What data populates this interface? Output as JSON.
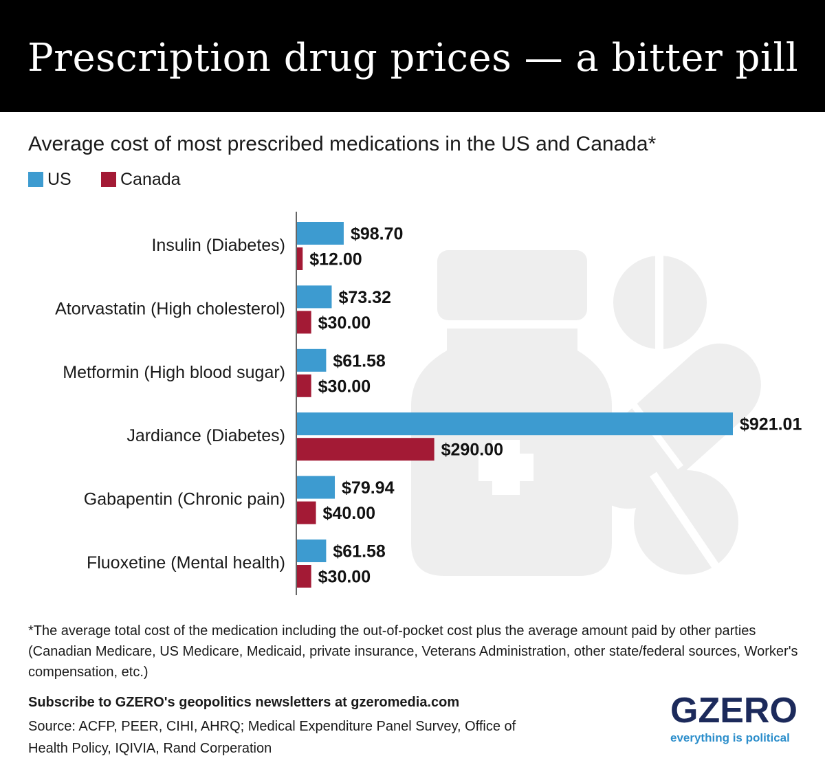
{
  "header": {
    "title": "Prescription drug prices — a bitter pill"
  },
  "chart_data": {
    "type": "bar",
    "orientation": "horizontal",
    "title": "Average cost of most prescribed medications in the US and Canada*",
    "categories": [
      "Insulin (Diabetes)",
      "Atorvastatin (High cholesterol)",
      "Metformin (High blood sugar)",
      "Jardiance (Diabetes)",
      "Gabapentin (Chronic pain)",
      "Fluoxetine (Mental health)"
    ],
    "series": [
      {
        "name": "US",
        "color": "#3d9bd0",
        "values": [
          98.7,
          73.32,
          61.58,
          921.01,
          79.94,
          61.58
        ],
        "labels": [
          "$98.70",
          "$73.32",
          "$61.58",
          "$921.01",
          "$79.94",
          "$61.58"
        ]
      },
      {
        "name": "Canada",
        "color": "#a31a35",
        "values": [
          12.0,
          30.0,
          30.0,
          290.0,
          40.0,
          30.0
        ],
        "labels": [
          "$12.00",
          "$30.00",
          "$30.00",
          "$290.00",
          "$40.00",
          "$30.00"
        ]
      }
    ],
    "xlim": [
      0,
      921.01
    ],
    "xlabel": "",
    "ylabel": "",
    "grid": false,
    "legend_position": "top-left"
  },
  "footnote": "*The average total cost of the medication including the out-of-pocket cost plus the average amount paid by other parties (Canadian Medicare, US Medicare, Medicaid, private insurance, Veterans Administration, other state/federal sources, Worker's compensation, etc.)",
  "footer": {
    "subscribe": "Subscribe to GZERO's geopolitics newsletters at gzeromedia.com",
    "source": "Source: ACFP, PEER, CIHI, AHRQ; Medical Expenditure Panel Survey, Office of Health Policy, IQIVIA, Rand Corperation"
  },
  "brand": {
    "logo": "GZERO",
    "tagline": "everything is political"
  }
}
